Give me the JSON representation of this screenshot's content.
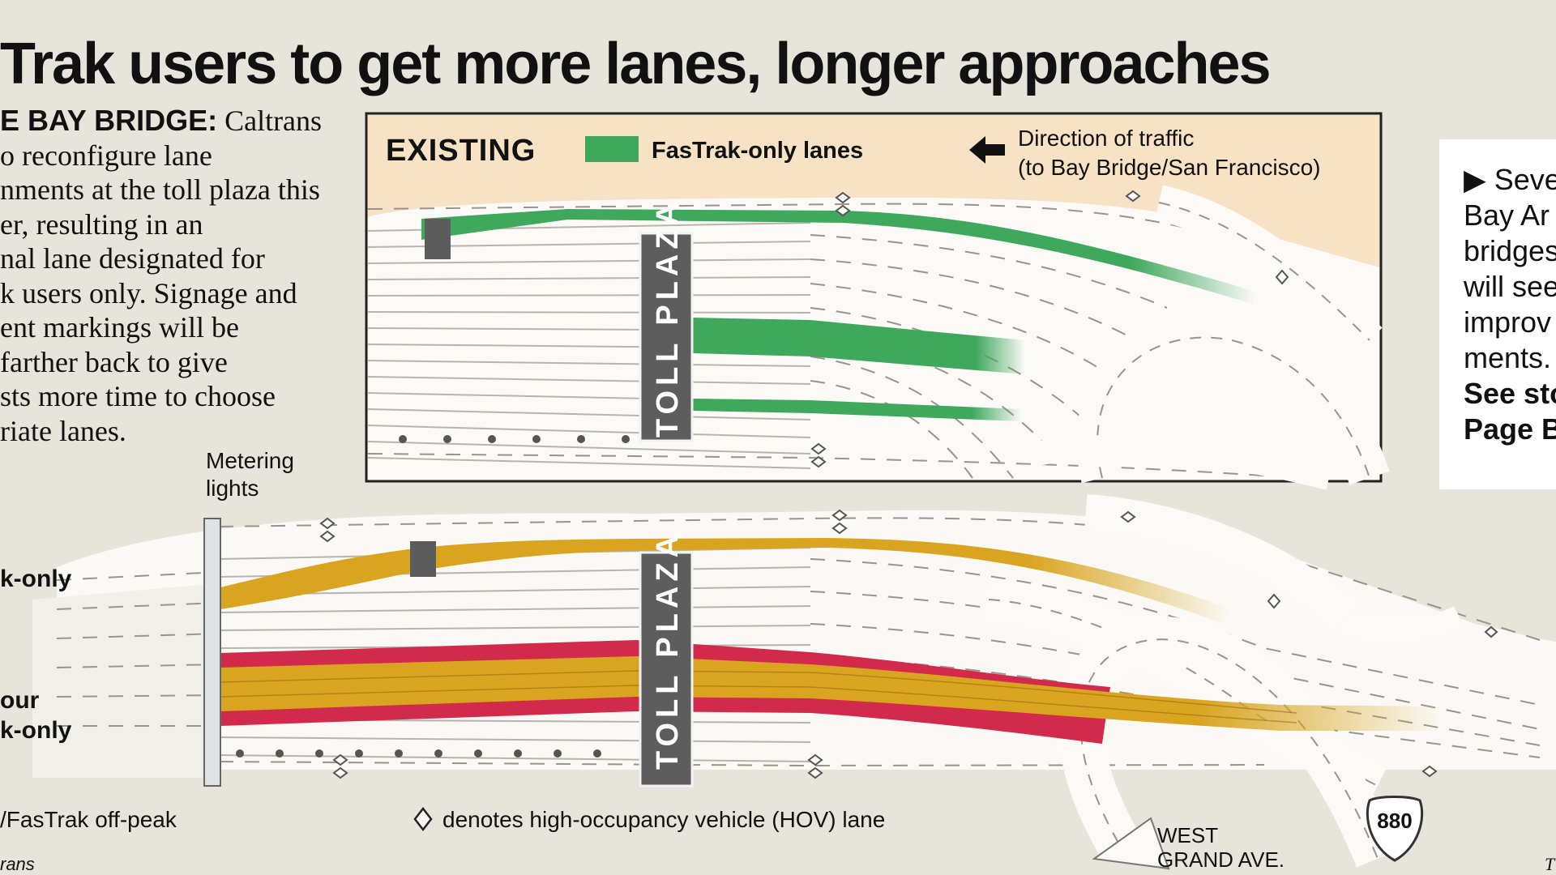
{
  "headline": "Trak users to get more lanes, longer approaches",
  "intro": {
    "lead": "E BAY BRIDGE:",
    "first_line_rest": " Caltrans",
    "lines": [
      "o reconfigure lane",
      "nments at the toll plaza this",
      "er, resulting in an",
      "nal lane designated for",
      "k users only. Signage and",
      "ent markings will be",
      " farther back to give",
      "sts more time to choose",
      "riate lanes."
    ]
  },
  "existing_box": {
    "title": "EXISTING",
    "legend_label": "FasTrak-only lanes",
    "legend_color": "#3fa85d",
    "direction_line1": "Direction of traffic",
    "direction_line2": "(to Bay Bridge/San Francisco)",
    "arrow_icon": "left-arrow-icon"
  },
  "toll_plaza_label": "TOLL PLAZA",
  "metering_lights_line1": "Metering",
  "metering_lights_line2": "lights",
  "left_labels": {
    "upper": "k-only",
    "lower_line1": "our",
    "lower_line2": "k-only",
    "bottom": "/FasTrak off-peak"
  },
  "hov_legend": "denotes high-occupancy vehicle (HOV) lane",
  "hov_icon": "diamond-icon",
  "west_grand_line1": "WEST",
  "west_grand_line2": "GRAND AVE.",
  "shield_number": "880",
  "source": "rans",
  "corner_mark": "T",
  "sidebar": {
    "lines": [
      "▶ Seve",
      "Bay Ar",
      "bridges",
      "will see",
      "improv",
      "ments."
    ],
    "see_line1": "See sto",
    "see_line2": "Page B"
  },
  "colors": {
    "fastrak_green": "#3fa85d",
    "fastrak_gold": "#d9a521",
    "carpool_red": "#d22a4a",
    "existing_bg": "#f7e2c6"
  }
}
